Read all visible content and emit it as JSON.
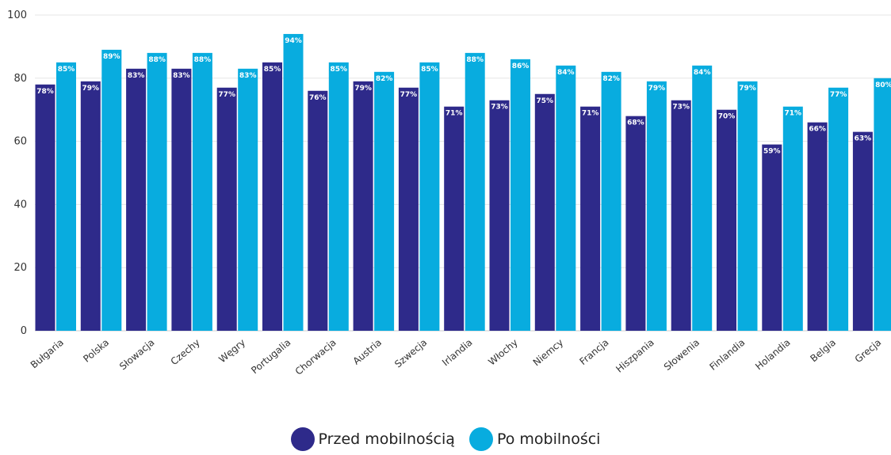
{
  "chart_data": {
    "type": "bar",
    "categories": [
      "Bułgaria",
      "Polska",
      "Słowacja",
      "Czechy",
      "Węgry",
      "Portugalia",
      "Chorwacja",
      "Austria",
      "Szwecja",
      "Irlandia",
      "Włochy",
      "Niemcy",
      "Francja",
      "Hiszpania",
      "Słowenia",
      "Finlandia",
      "Holandia",
      "Belgia",
      "Grecja"
    ],
    "series": [
      {
        "name": "Przed mobilnością",
        "color": "#2e2a8a",
        "values": [
          78,
          79,
          83,
          83,
          77,
          85,
          76,
          79,
          77,
          71,
          73,
          75,
          71,
          68,
          73,
          70,
          59,
          66,
          63
        ]
      },
      {
        "name": "Po mobilności",
        "color": "#08acdf",
        "values": [
          85,
          89,
          88,
          88,
          83,
          94,
          85,
          82,
          85,
          88,
          86,
          84,
          82,
          79,
          84,
          79,
          71,
          77,
          80
        ]
      }
    ],
    "data_labels": [
      [
        "78%",
        "79%",
        "83%",
        "83%",
        "77%",
        "85%",
        "76%",
        "79%",
        "77%",
        "71%",
        "73%",
        "75%",
        "71%",
        "68%",
        "73%",
        "70%",
        "59%",
        "66%",
        "63%"
      ],
      [
        "85%",
        "89%",
        "88%",
        "88%",
        "83%",
        "94%",
        "85%",
        "82%",
        "85%",
        "88%",
        "86%",
        "84%",
        "82%",
        "79%",
        "84%",
        "79%",
        "71%",
        "77%",
        "80%"
      ]
    ],
    "yticks": [
      "0",
      "20",
      "40",
      "60",
      "80",
      "100"
    ],
    "ylim": [
      0,
      100
    ],
    "grid": true,
    "legend_position": "bottom-center"
  }
}
